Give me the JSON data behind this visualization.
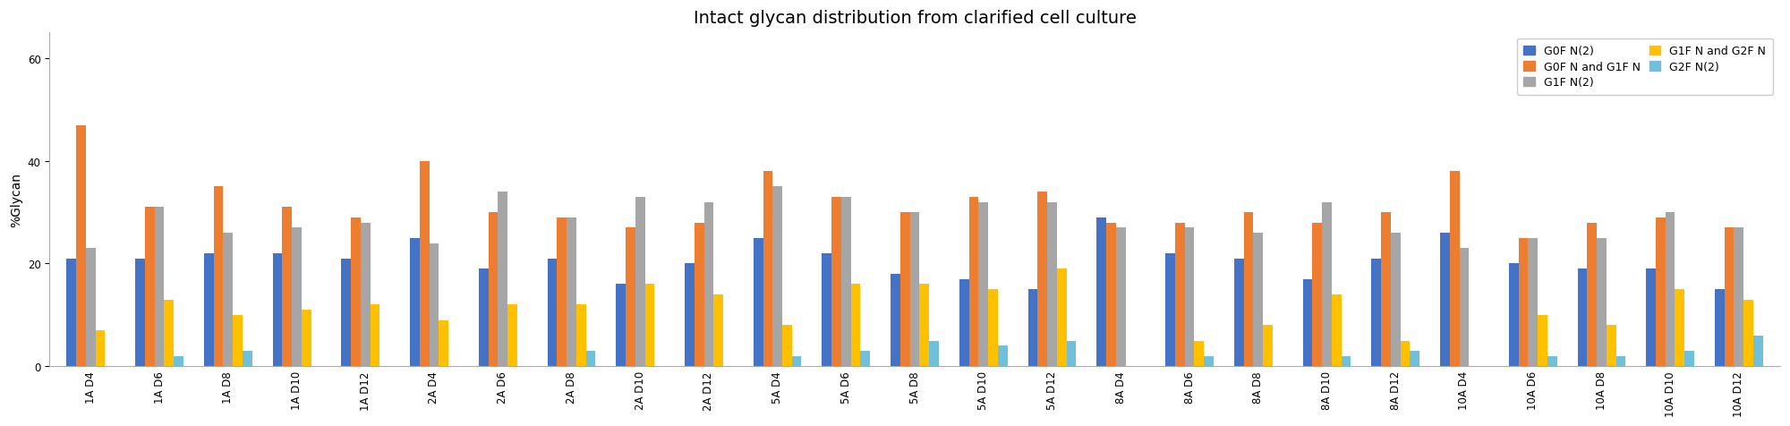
{
  "title": "Intact glycan distribution from clarified cell culture",
  "ylabel": "%Glycan",
  "ylim": [
    0,
    65
  ],
  "yticks": [
    0,
    20,
    40,
    60
  ],
  "categories": [
    "1A D4",
    "1A D6",
    "1A D8",
    "1A D10",
    "1A D12",
    "2A D4",
    "2A D6",
    "2A D8",
    "2A D10",
    "2A D12",
    "5A D4",
    "5A D6",
    "5A D8",
    "5A D10",
    "5A D12",
    "8A D4",
    "8A D6",
    "8A D8",
    "8A D10",
    "8A D12",
    "10A D4",
    "10A D6",
    "10A D8",
    "10A D10",
    "10A D12"
  ],
  "series_order": [
    "G0F N(2)",
    "G0F N and G1F N",
    "G1F N(2)",
    "G1F N and G2F N",
    "G2F N(2)"
  ],
  "series": {
    "G0F N(2)": {
      "color": "#4472C4",
      "values": [
        21,
        21,
        22,
        22,
        21,
        25,
        19,
        21,
        16,
        20,
        25,
        22,
        18,
        17,
        15,
        29,
        22,
        21,
        17,
        21,
        26,
        20,
        19,
        19,
        15
      ]
    },
    "G1F N(2)": {
      "color": "#A6A6A6",
      "values": [
        23,
        31,
        26,
        27,
        28,
        24,
        34,
        29,
        33,
        32,
        35,
        33,
        30,
        32,
        32,
        27,
        27,
        26,
        32,
        26,
        23,
        25,
        25,
        30,
        27
      ]
    },
    "G2F N(2)": {
      "color": "#70C0DC",
      "values": [
        0,
        2,
        3,
        0,
        0,
        0,
        0,
        3,
        0,
        0,
        2,
        3,
        5,
        4,
        5,
        0,
        2,
        0,
        2,
        3,
        0,
        2,
        2,
        3,
        6
      ]
    },
    "G0F N and G1F N": {
      "color": "#ED7D31",
      "values": [
        47,
        31,
        35,
        31,
        29,
        40,
        30,
        29,
        27,
        28,
        38,
        33,
        30,
        33,
        34,
        28,
        28,
        30,
        28,
        30,
        38,
        25,
        28,
        29,
        27
      ]
    },
    "G1F N and G2F N": {
      "color": "#FFC000",
      "values": [
        7,
        13,
        10,
        11,
        12,
        9,
        12,
        12,
        16,
        14,
        8,
        16,
        16,
        15,
        19,
        0,
        5,
        8,
        14,
        5,
        0,
        10,
        8,
        15,
        13
      ]
    }
  },
  "legend_order": [
    "G0F N(2)",
    "G0F N and G1F N",
    "G1F N(2)",
    "G1F N and G2F N",
    "G2F N(2)"
  ],
  "background_color": "#FFFFFF",
  "bar_width": 0.14,
  "title_fontsize": 14,
  "axis_fontsize": 10,
  "tick_fontsize": 8.5,
  "legend_fontsize": 9
}
